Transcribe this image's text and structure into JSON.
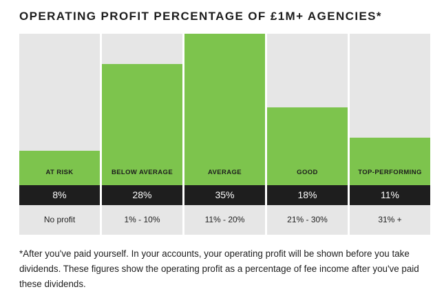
{
  "title": "OPERATING PROFIT PERCENTAGE OF £1M+ AGENCIES*",
  "colors": {
    "bar": "#7dc44d",
    "column_bg": "#e6e6e6",
    "label_band": "#1e1e1e"
  },
  "chart_data": {
    "type": "bar",
    "categories": [
      "AT RISK",
      "BELOW AVERAGE",
      "AVERAGE",
      "GOOD",
      "TOP-PERFORMING"
    ],
    "values": [
      8,
      28,
      35,
      18,
      11
    ],
    "value_labels": [
      "8%",
      "28%",
      "35%",
      "18%",
      "11%"
    ],
    "ranges": [
      "No profit",
      "1% - 10%",
      "11% - 20%",
      "21% - 30%",
      "31% +"
    ],
    "ylim": [
      0,
      35
    ],
    "grid": false
  },
  "footnote": "*After you've paid yourself. In your accounts, your operating profit will be shown before you take dividends. These figures show the operating profit as a percentage of fee income after you've paid these dividends."
}
